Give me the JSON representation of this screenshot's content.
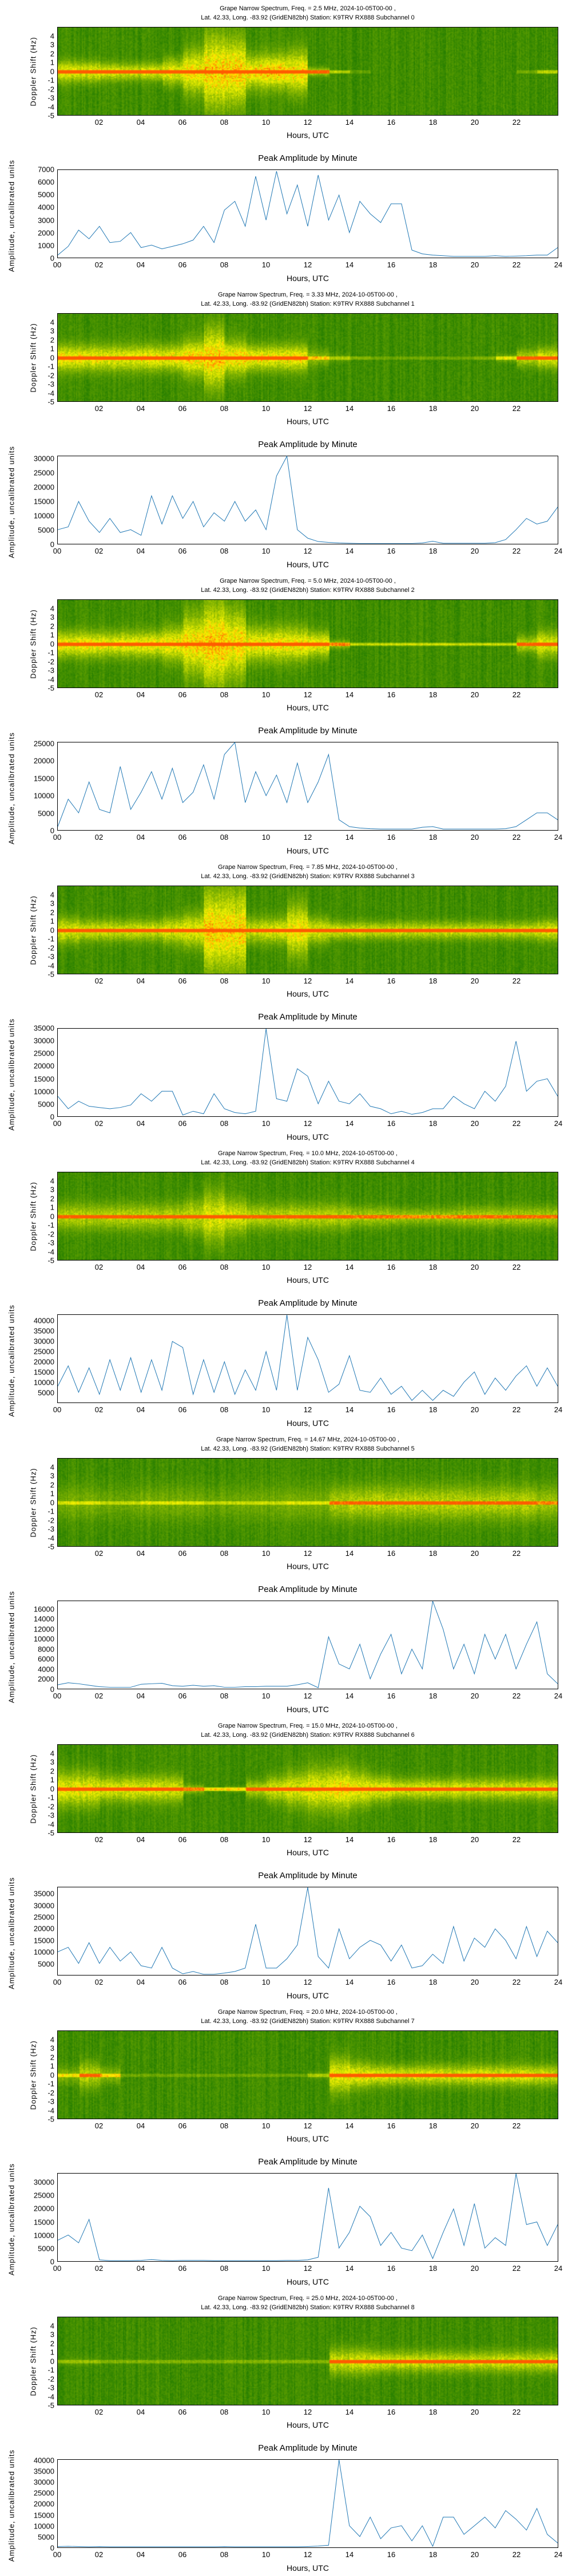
{
  "colors": {
    "line": "#1f77b4",
    "spectrogram_base": "#0a7d00",
    "spectrogram_band": "#f2f200",
    "spectrogram_peak": "#ff5a00"
  },
  "labels": {
    "doppler_ylabel": "Doppler Shift (Hz)",
    "amp_ylabel": "Amplitude, uncalibrated units",
    "xlabel": "Hours, UTC",
    "amp_title": "Peak Amplitude by Minute"
  },
  "spec_yticks": [
    "-5",
    "-4",
    "-3",
    "-2",
    "-1",
    "0",
    "1",
    "2",
    "3",
    "4"
  ],
  "spec_xticks": [
    "02",
    "04",
    "06",
    "08",
    "10",
    "12",
    "14",
    "16",
    "18",
    "20",
    "22"
  ],
  "line_xticks": [
    "00",
    "02",
    "04",
    "06",
    "08",
    "10",
    "12",
    "14",
    "16",
    "18",
    "20",
    "22",
    "24"
  ],
  "chart_data": [
    {
      "type": "line+heatmap",
      "title1": "Grape Narrow Spectrum, Freq. = 2.5 MHz, 2024-10-05T00-00 ,",
      "title2": "Lat.  42.33, Long. -83.92 (GridEN82bh) Station: K9TRV RX888 Subchannel 0",
      "spec_ylim": [
        -5,
        5
      ],
      "xlim": [
        0,
        24
      ],
      "ylim": [
        0,
        7000
      ],
      "yticks": [
        "0",
        "1000",
        "2000",
        "3000",
        "4000",
        "5000",
        "6000",
        "7000"
      ],
      "yvals": [
        0,
        1000,
        2000,
        3000,
        4000,
        5000,
        6000,
        7000
      ],
      "x_step_hours": 0.5,
      "values": [
        200,
        900,
        2200,
        1500,
        2500,
        1200,
        1300,
        2000,
        800,
        1000,
        700,
        900,
        1100,
        1400,
        2500,
        1200,
        3800,
        4500,
        2500,
        6500,
        3000,
        6900,
        3500,
        5800,
        2500,
        6600,
        3000,
        5000,
        2000,
        4500,
        3500,
        2800,
        4300,
        4300,
        600,
        300,
        200,
        150,
        100,
        100,
        100,
        100,
        150,
        100,
        120,
        150,
        200,
        200,
        800
      ],
      "band_intensity": [
        0.8,
        0.8,
        0.75,
        0.7,
        0.75,
        0.8,
        0.85,
        0.95,
        0.95,
        0.9,
        0.95,
        0.9,
        0.6,
        0.25,
        0.05,
        0,
        0,
        0,
        0,
        0,
        0,
        0,
        0.05,
        0.25
      ],
      "band_spread_hz": [
        1.2,
        1.2,
        1,
        1,
        1,
        1.5,
        2.5,
        4.5,
        4,
        2,
        2,
        2.5,
        0.5,
        0.1,
        0,
        0,
        0,
        0,
        0,
        0,
        0,
        0,
        0.1,
        0.2
      ]
    },
    {
      "type": "line+heatmap",
      "title1": "Grape Narrow Spectrum, Freq. = 3.33 MHz, 2024-10-05T00-00 ,",
      "title2": "Lat.  42.33, Long. -83.92 (GridEN82bh) Station: K9TRV RX888 Subchannel 1",
      "spec_ylim": [
        -5,
        5
      ],
      "xlim": [
        0,
        24
      ],
      "ylim": [
        0,
        31000
      ],
      "yticks": [
        "0",
        "5000",
        "10000",
        "15000",
        "20000",
        "25000",
        "30000"
      ],
      "yvals": [
        0,
        5000,
        10000,
        15000,
        20000,
        25000,
        30000
      ],
      "x_step_hours": 0.5,
      "values": [
        5000,
        6000,
        15000,
        8000,
        4000,
        9000,
        4000,
        5000,
        3000,
        17000,
        7000,
        17000,
        9000,
        15000,
        6000,
        11000,
        8000,
        15000,
        8000,
        12000,
        5000,
        24000,
        31000,
        5000,
        2000,
        800,
        500,
        300,
        200,
        150,
        150,
        150,
        150,
        150,
        150,
        300,
        900,
        200,
        200,
        200,
        200,
        200,
        400,
        1500,
        5000,
        9000,
        7000,
        8000,
        13000
      ],
      "band_intensity": [
        0.85,
        0.85,
        0.8,
        0.8,
        0.85,
        0.85,
        0.9,
        0.95,
        0.9,
        0.85,
        0.85,
        0.85,
        0.4,
        0.2,
        0.1,
        0.05,
        0.05,
        0.05,
        0.05,
        0.05,
        0.1,
        0.3,
        0.6,
        0.75
      ],
      "band_spread_hz": [
        1.5,
        1.5,
        1.5,
        1.5,
        1.5,
        1.5,
        2,
        3.5,
        2,
        1.5,
        1.5,
        1.5,
        1,
        0.5,
        0.2,
        0.1,
        0.1,
        0.1,
        0.1,
        0.1,
        0.2,
        0.5,
        1,
        1.2
      ]
    },
    {
      "type": "line+heatmap",
      "title1": "Grape Narrow Spectrum, Freq. = 5.0 MHz, 2024-10-05T00-00 ,",
      "title2": "Lat.  42.33, Long. -83.92 (GridEN82bh) Station: K9TRV RX888 Subchannel 2",
      "spec_ylim": [
        -5,
        5
      ],
      "xlim": [
        0,
        24
      ],
      "ylim": [
        0,
        25500
      ],
      "yticks": [
        "0",
        "5000",
        "10000",
        "15000",
        "20000",
        "25000"
      ],
      "yvals": [
        0,
        5000,
        10000,
        15000,
        20000,
        25000
      ],
      "x_step_hours": 0.5,
      "values": [
        1000,
        9000,
        5000,
        14000,
        6000,
        5000,
        18500,
        6000,
        11000,
        17000,
        9000,
        18000,
        8000,
        11000,
        19000,
        9000,
        22000,
        25500,
        8000,
        17000,
        10000,
        16000,
        8000,
        19500,
        8000,
        14000,
        22000,
        3000,
        1000,
        600,
        400,
        300,
        300,
        300,
        300,
        800,
        1000,
        300,
        300,
        300,
        300,
        300,
        300,
        400,
        1000,
        3000,
        5000,
        5000,
        3000
      ],
      "band_intensity": [
        0.85,
        0.85,
        0.8,
        0.8,
        0.85,
        0.85,
        0.9,
        0.95,
        0.9,
        0.85,
        0.85,
        0.85,
        0.85,
        0.5,
        0.3,
        0.3,
        0.3,
        0.3,
        0.3,
        0.3,
        0.3,
        0.3,
        0.6,
        0.75
      ],
      "band_spread_hz": [
        1.5,
        1.5,
        1.5,
        1.5,
        1.5,
        2,
        3.5,
        5,
        4,
        2,
        2,
        2,
        1.5,
        0.5,
        0.05,
        0.05,
        0.05,
        0.05,
        0.05,
        0.05,
        0.05,
        0.05,
        1,
        1.5
      ]
    },
    {
      "type": "line+heatmap",
      "title1": "Grape Narrow Spectrum, Freq. = 7.85 MHz, 2024-10-05T00-00 ,",
      "title2": "Lat.  42.33, Long. -83.92 (GridEN82bh) Station: K9TRV RX888 Subchannel 3",
      "spec_ylim": [
        -5,
        5
      ],
      "xlim": [
        0,
        24
      ],
      "ylim": [
        0,
        35000
      ],
      "yticks": [
        "0",
        "5000",
        "10000",
        "15000",
        "20000",
        "25000",
        "30000",
        "35000"
      ],
      "yvals": [
        0,
        5000,
        10000,
        15000,
        20000,
        25000,
        30000,
        35000
      ],
      "x_step_hours": 0.5,
      "values": [
        8000,
        3000,
        6000,
        4000,
        3500,
        3000,
        3500,
        4500,
        9000,
        6000,
        10000,
        10000,
        500,
        2000,
        1000,
        9000,
        3000,
        1500,
        1000,
        2000,
        35000,
        7000,
        6000,
        19000,
        16000,
        5000,
        14000,
        6000,
        5000,
        9000,
        4000,
        3000,
        1000,
        2000,
        800,
        1500,
        3000,
        3000,
        8000,
        5000,
        3000,
        10000,
        6000,
        12000,
        30000,
        10000,
        14000,
        15000,
        8000
      ],
      "band_intensity": [
        0.75,
        0.7,
        0.7,
        0.7,
        0.7,
        0.75,
        0.8,
        0.95,
        0.9,
        0.7,
        0.75,
        0.85,
        0.75,
        0.7,
        0.7,
        0.7,
        0.7,
        0.7,
        0.7,
        0.7,
        0.7,
        0.7,
        0.7,
        0.75
      ],
      "band_spread_hz": [
        1.5,
        1.2,
        1.2,
        1.2,
        1.2,
        1.5,
        2,
        5,
        5,
        1.5,
        1.5,
        3,
        1.5,
        1,
        1,
        1,
        1,
        1,
        1,
        1,
        1,
        1,
        1,
        1.2
      ]
    },
    {
      "type": "line+heatmap",
      "title1": "Grape Narrow Spectrum, Freq. = 10.0 MHz, 2024-10-05T00-00 ,",
      "title2": "Lat.  42.33, Long. -83.92 (GridEN82bh) Station: K9TRV RX888 Subchannel 4",
      "spec_ylim": [
        -5,
        5
      ],
      "xlim": [
        0,
        24
      ],
      "ylim": [
        0,
        43000
      ],
      "yticks": [
        "5000",
        "10000",
        "15000",
        "20000",
        "25000",
        "30000",
        "35000",
        "40000"
      ],
      "yvals": [
        5000,
        10000,
        15000,
        20000,
        25000,
        30000,
        35000,
        40000
      ],
      "x_step_hours": 0.5,
      "values": [
        8000,
        18000,
        5000,
        17000,
        4000,
        21000,
        6000,
        22000,
        5000,
        21000,
        6000,
        30000,
        27000,
        4000,
        21000,
        5000,
        20000,
        4000,
        16000,
        6000,
        25000,
        6000,
        43000,
        6000,
        32000,
        21000,
        5000,
        9000,
        23000,
        6000,
        5000,
        12000,
        4000,
        8000,
        1000,
        6000,
        1000,
        6000,
        3000,
        10000,
        15000,
        4000,
        12000,
        6000,
        13000,
        18000,
        8000,
        17000,
        8000
      ],
      "band_intensity": [
        0.6,
        0.6,
        0.6,
        0.6,
        0.6,
        0.6,
        0.65,
        0.75,
        0.7,
        0.6,
        0.6,
        0.65,
        0.6,
        0.6,
        0.55,
        0.55,
        0.5,
        0.5,
        0.5,
        0.55,
        0.55,
        0.55,
        0.55,
        0.55
      ],
      "band_spread_hz": [
        1.5,
        1.5,
        1.5,
        1.5,
        1.5,
        1.5,
        2,
        3,
        2,
        1.5,
        1.5,
        1.5,
        1.5,
        1.5,
        1.2,
        1.2,
        1,
        1,
        1,
        1.2,
        1.2,
        1.2,
        1.2,
        1.2
      ]
    },
    {
      "type": "line+heatmap",
      "title1": "Grape Narrow Spectrum, Freq. = 14.67 MHz, 2024-10-05T00-00 ,",
      "title2": "Lat.  42.33, Long. -83.92 (GridEN82bh) Station: K9TRV RX888 Subchannel 5",
      "spec_ylim": [
        -5,
        5
      ],
      "xlim": [
        0,
        24
      ],
      "ylim": [
        0,
        17700
      ],
      "yticks": [
        "0",
        "2000",
        "4000",
        "6000",
        "8000",
        "10000",
        "12000",
        "14000",
        "16000"
      ],
      "yvals": [
        0,
        2000,
        4000,
        6000,
        8000,
        10000,
        12000,
        14000,
        16000
      ],
      "x_step_hours": 0.5,
      "values": [
        800,
        1200,
        1000,
        700,
        400,
        300,
        300,
        300,
        900,
        1000,
        1100,
        600,
        500,
        700,
        500,
        600,
        300,
        300,
        400,
        400,
        500,
        500,
        500,
        800,
        1200,
        200,
        10500,
        5000,
        4000,
        9000,
        2000,
        7000,
        11000,
        3000,
        8000,
        4000,
        17700,
        12000,
        4000,
        9000,
        3000,
        11000,
        6000,
        11000,
        4000,
        9000,
        13500,
        3000,
        1000
      ],
      "band_intensity": [
        0.3,
        0.3,
        0.25,
        0.25,
        0.3,
        0.3,
        0.3,
        0.25,
        0.25,
        0.25,
        0.25,
        0.3,
        0.3,
        0.55,
        0.6,
        0.6,
        0.6,
        0.6,
        0.6,
        0.6,
        0.6,
        0.6,
        0.6,
        0.5
      ],
      "band_spread_hz": [
        2,
        2,
        2,
        2,
        2,
        2,
        2,
        2,
        2,
        2,
        2,
        2,
        2,
        2,
        2,
        2,
        2,
        2,
        2,
        2,
        2,
        2,
        2,
        2
      ]
    },
    {
      "type": "line+heatmap",
      "title1": "Grape Narrow Spectrum, Freq. = 15.0 MHz, 2024-10-05T00-00 ,",
      "title2": "Lat.  42.33, Long. -83.92 (GridEN82bh) Station: K9TRV RX888 Subchannel 6",
      "spec_ylim": [
        -5,
        5
      ],
      "xlim": [
        0,
        24
      ],
      "ylim": [
        0,
        38000
      ],
      "yticks": [
        "5000",
        "10000",
        "15000",
        "20000",
        "25000",
        "30000",
        "35000"
      ],
      "yvals": [
        5000,
        10000,
        15000,
        20000,
        25000,
        30000,
        35000
      ],
      "x_step_hours": 0.5,
      "values": [
        10000,
        12000,
        5000,
        14000,
        5000,
        12000,
        6000,
        10000,
        4000,
        3000,
        12000,
        3000,
        500,
        1500,
        300,
        300,
        800,
        1500,
        3000,
        22000,
        3000,
        3000,
        7000,
        13000,
        38000,
        8000,
        3000,
        20000,
        7000,
        12000,
        15000,
        13000,
        6000,
        13000,
        3000,
        4000,
        9000,
        5000,
        21000,
        6000,
        16000,
        12000,
        20000,
        15000,
        7000,
        21000,
        8000,
        19000,
        14000
      ],
      "band_intensity": [
        0.8,
        0.8,
        0.75,
        0.75,
        0.75,
        0.7,
        0.5,
        0.4,
        0.4,
        0.6,
        0.7,
        0.75,
        0.8,
        0.85,
        0.8,
        0.8,
        0.75,
        0.75,
        0.75,
        0.75,
        0.75,
        0.75,
        0.75,
        0.75
      ],
      "band_spread_hz": [
        2,
        2,
        1.5,
        1.5,
        1.5,
        1.5,
        0.5,
        0.2,
        0.3,
        1,
        1.5,
        2,
        2.5,
        2.5,
        2,
        1.5,
        1.2,
        1.2,
        1.2,
        1.2,
        1.2,
        1.2,
        1.2,
        1.2
      ]
    },
    {
      "type": "line+heatmap",
      "title1": "Grape Narrow Spectrum, Freq. = 20.0 MHz, 2024-10-05T00-00 ,",
      "title2": "Lat.  42.33, Long. -83.92 (GridEN82bh) Station: K9TRV RX888 Subchannel 7",
      "spec_ylim": [
        -5,
        5
      ],
      "xlim": [
        0,
        24
      ],
      "ylim": [
        0,
        33500
      ],
      "yticks": [
        "0",
        "5000",
        "10000",
        "15000",
        "20000",
        "25000",
        "30000"
      ],
      "yvals": [
        0,
        5000,
        10000,
        15000,
        20000,
        25000,
        30000
      ],
      "x_step_hours": 0.5,
      "values": [
        8000,
        10000,
        7000,
        16000,
        500,
        200,
        200,
        200,
        300,
        600,
        300,
        200,
        300,
        300,
        300,
        200,
        200,
        200,
        200,
        200,
        200,
        200,
        300,
        300,
        500,
        1500,
        28000,
        5000,
        11000,
        21000,
        17000,
        6000,
        11000,
        5000,
        4000,
        10000,
        1000,
        11000,
        20000,
        6000,
        22000,
        5000,
        9000,
        6000,
        33500,
        14000,
        15000,
        6000,
        14000
      ],
      "band_intensity": [
        0.35,
        0.6,
        0.4,
        0.05,
        0.05,
        0.05,
        0.05,
        0.05,
        0.05,
        0.05,
        0.05,
        0.05,
        0.2,
        0.8,
        0.8,
        0.75,
        0.75,
        0.75,
        0.75,
        0.75,
        0.75,
        0.75,
        0.75,
        0.7
      ],
      "band_spread_hz": [
        1,
        1.5,
        1,
        0.1,
        0.1,
        0.1,
        0.1,
        0.1,
        0.1,
        0.1,
        0.1,
        0.1,
        0.5,
        2,
        1.5,
        1.2,
        1.2,
        1.2,
        1.2,
        1.2,
        1.2,
        1.2,
        1.2,
        1.2
      ]
    },
    {
      "type": "line+heatmap",
      "title1": "Grape Narrow Spectrum, Freq. = 25.0 MHz, 2024-10-05T00-00 ,",
      "title2": "Lat.  42.33, Long. -83.92 (GridEN82bh) Station: K9TRV RX888 Subchannel 8",
      "spec_ylim": [
        -5,
        5
      ],
      "xlim": [
        0,
        24
      ],
      "ylim": [
        0,
        40500
      ],
      "yticks": [
        "0",
        "5000",
        "10000",
        "15000",
        "20000",
        "25000",
        "30000",
        "35000",
        "40000"
      ],
      "yvals": [
        0,
        5000,
        10000,
        15000,
        20000,
        25000,
        30000,
        35000,
        40000
      ],
      "x_step_hours": 0.5,
      "values": [
        400,
        500,
        400,
        300,
        400,
        300,
        300,
        300,
        300,
        300,
        300,
        300,
        300,
        300,
        300,
        300,
        400,
        300,
        300,
        300,
        300,
        300,
        300,
        300,
        400,
        600,
        1000,
        40500,
        10000,
        5000,
        14000,
        4000,
        9000,
        10000,
        3000,
        10000,
        500,
        14000,
        14000,
        6000,
        10000,
        14000,
        9000,
        17000,
        13000,
        8000,
        18000,
        6000,
        2000
      ],
      "band_intensity": [
        0.15,
        0.15,
        0.1,
        0.1,
        0.1,
        0.1,
        0.1,
        0.1,
        0.1,
        0.1,
        0.1,
        0.1,
        0.1,
        0.7,
        0.75,
        0.75,
        0.7,
        0.7,
        0.7,
        0.7,
        0.7,
        0.7,
        0.7,
        0.7
      ],
      "band_spread_hz": [
        0.5,
        0.5,
        0.3,
        0.3,
        0.3,
        0.3,
        0.3,
        0.3,
        0.3,
        0.3,
        0.3,
        0.3,
        0.3,
        1.5,
        1.5,
        1.2,
        1.2,
        1.2,
        1.2,
        1.2,
        1.2,
        1.2,
        1.2,
        1.2
      ]
    }
  ]
}
